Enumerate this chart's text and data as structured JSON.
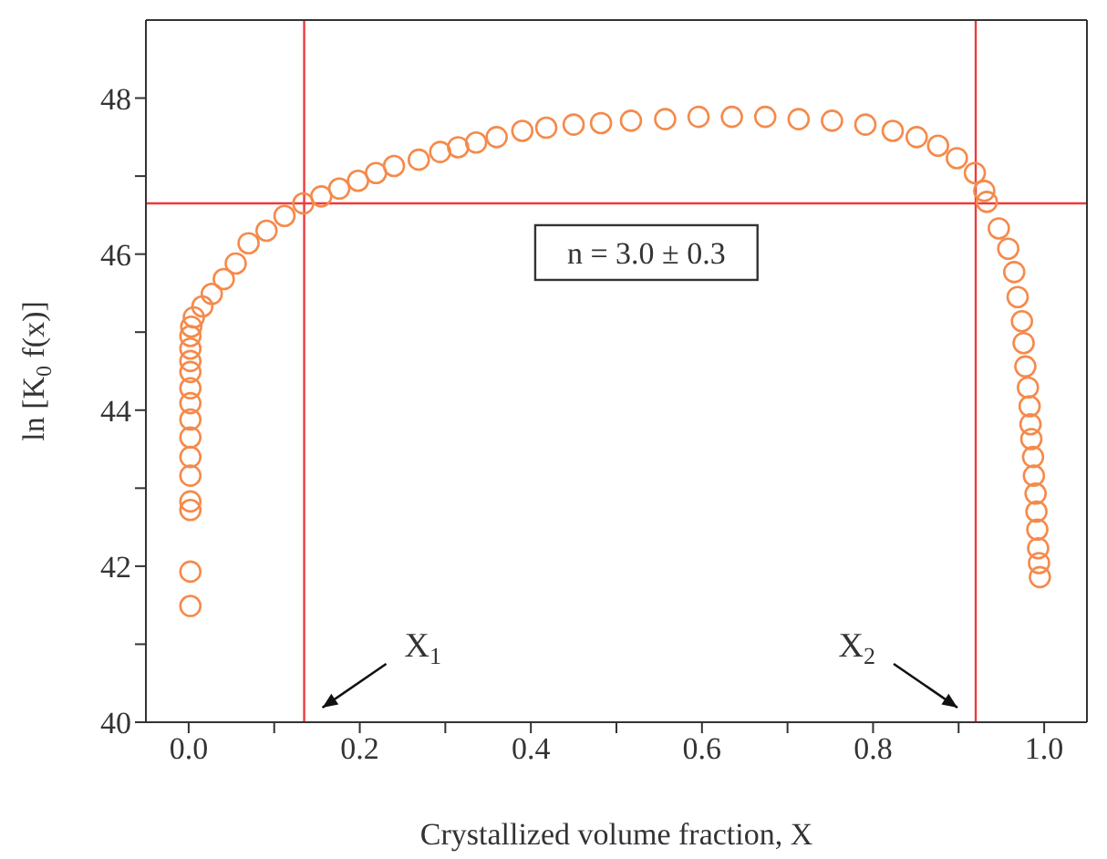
{
  "chart_data": {
    "type": "scatter",
    "xlabel": "Crystallized volume fraction, X",
    "ylabel": "ln [K$_{0}$ f(x)]",
    "marker": "circle",
    "xlim": [
      -0.05,
      1.05
    ],
    "xticks": [
      {
        "value": 0,
        "label": "0.0"
      },
      {
        "value": 0.1,
        "label": null
      },
      0.2,
      {
        "value": 0.3,
        "label": null
      },
      0.4,
      {
        "value": 0.5,
        "label": null
      },
      0.6,
      {
        "value": 0.7,
        "label": null
      },
      0.8,
      {
        "value": 0.9,
        "label": null
      },
      {
        "value": 1,
        "label": "1.0"
      }
    ],
    "ylim": [
      40,
      49
    ],
    "yticks": [
      40,
      {
        "value": 41,
        "label": null
      },
      42,
      {
        "value": 43,
        "label": null
      },
      44,
      {
        "value": 45,
        "label": null
      },
      46,
      {
        "value": 47,
        "label": null
      },
      48
    ],
    "series": [
      {
        "color": "#f58a4b",
        "x": [
          0.002,
          0.002,
          0.002,
          0.002,
          0.002,
          0.002,
          0.002,
          0.002,
          0.002,
          0.002,
          0.002,
          0.002,
          0.002,
          0.002,
          0.003,
          0.006,
          0.016,
          0.027,
          0.041,
          0.055,
          0.07,
          0.091,
          0.112,
          0.134,
          0.155,
          0.176,
          0.198,
          0.219,
          0.24,
          0.269,
          0.294,
          0.315,
          0.336,
          0.36,
          0.39,
          0.418,
          0.45,
          0.482,
          0.517,
          0.557,
          0.596,
          0.635,
          0.674,
          0.713,
          0.752,
          0.791,
          0.823,
          0.851,
          0.876,
          0.898,
          0.919,
          0.93,
          0.933,
          0.947,
          0.958,
          0.965,
          0.969,
          0.974,
          0.976,
          0.978,
          0.981,
          0.983,
          0.984,
          0.985,
          0.987,
          0.988,
          0.99,
          0.991,
          0.992,
          0.993,
          0.994,
          0.995
        ],
        "values": [
          41.49,
          41.93,
          42.72,
          42.83,
          43.16,
          43.4,
          43.65,
          43.88,
          44.09,
          44.28,
          44.49,
          44.63,
          44.79,
          44.95,
          45.07,
          45.19,
          45.33,
          45.49,
          45.68,
          45.88,
          46.14,
          46.3,
          46.49,
          46.65,
          46.74,
          46.84,
          46.94,
          47.04,
          47.13,
          47.21,
          47.31,
          47.37,
          47.43,
          47.5,
          47.58,
          47.62,
          47.66,
          47.68,
          47.71,
          47.73,
          47.76,
          47.76,
          47.76,
          47.73,
          47.71,
          47.66,
          47.58,
          47.5,
          47.39,
          47.23,
          47.04,
          46.81,
          46.67,
          46.33,
          46.07,
          45.77,
          45.45,
          45.14,
          44.86,
          44.56,
          44.29,
          44.05,
          43.82,
          43.63,
          43.4,
          43.16,
          42.93,
          42.7,
          42.47,
          42.23,
          42.04,
          41.86
        ]
      }
    ],
    "ref_lines": [
      {
        "axis": "y",
        "value": 46.65,
        "color": "#ee3b3b"
      },
      {
        "axis": "x",
        "value": 0.135,
        "color": "#ee3b3b"
      },
      {
        "axis": "x",
        "value": 0.92,
        "color": "#ee3b3b"
      }
    ],
    "annotations": [
      "n = 3.0 ± 0.3",
      "X$_{1}$",
      "X$_{2}$"
    ]
  }
}
